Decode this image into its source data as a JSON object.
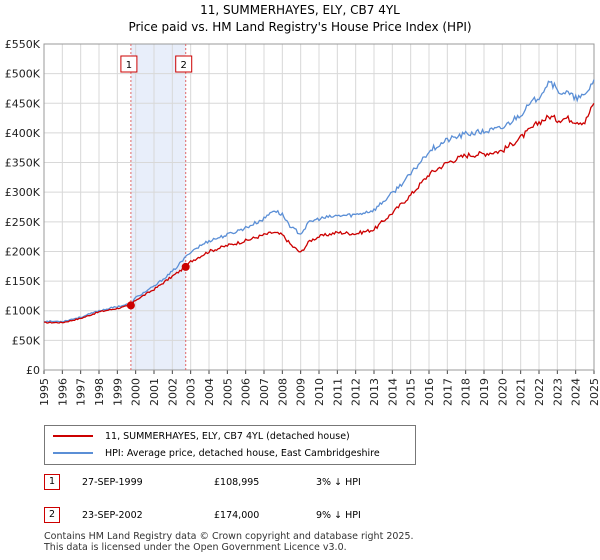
{
  "title_line1": "11, SUMMERHAYES, ELY, CB7 4YL",
  "title_line2": "Price paid vs. HM Land Registry's House Price Index (HPI)",
  "chart_data": {
    "type": "line",
    "xlim": [
      1995,
      2025
    ],
    "ylim": [
      0,
      550000
    ],
    "y_ticks": [
      0,
      50000,
      100000,
      150000,
      200000,
      250000,
      300000,
      350000,
      400000,
      450000,
      500000,
      550000
    ],
    "y_tick_labels": [
      "£0",
      "£50K",
      "£100K",
      "£150K",
      "£200K",
      "£250K",
      "£300K",
      "£350K",
      "£400K",
      "£450K",
      "£500K",
      "£550K"
    ],
    "x_ticks": [
      1995,
      1996,
      1997,
      1998,
      1999,
      2000,
      2001,
      2002,
      2003,
      2004,
      2005,
      2006,
      2007,
      2008,
      2009,
      2010,
      2011,
      2012,
      2013,
      2014,
      2015,
      2016,
      2017,
      2018,
      2019,
      2020,
      2021,
      2022,
      2023,
      2024,
      2025
    ],
    "x_tick_labels": [
      "1995",
      "1996",
      "1997",
      "1998",
      "1999",
      "2000",
      "2001",
      "2002",
      "2003",
      "2004",
      "2005",
      "2006",
      "2007",
      "2008",
      "2009",
      "2010",
      "2011",
      "2012",
      "2013",
      "2014",
      "2015",
      "2016",
      "2017",
      "2018",
      "2019",
      "2020",
      "2021",
      "2022",
      "2023",
      "2024",
      "2025"
    ],
    "shaded_region": [
      1999.74,
      2002.73
    ],
    "series": [
      {
        "name": "11, SUMMERHAYES, ELY, CB7 4YL (detached house)",
        "color": "#cc0000",
        "x": [
          1995,
          1996,
          1997,
          1998,
          1999,
          1999.74,
          2000,
          2001,
          2002,
          2002.73,
          2003,
          2004,
          2005,
          2006,
          2007,
          2007.5,
          2008,
          2008.5,
          2009,
          2009.5,
          2010,
          2011,
          2012,
          2013,
          2014,
          2015,
          2016,
          2017,
          2018,
          2019,
          2020,
          2021,
          2022,
          2022.6,
          2023,
          2023.5,
          2024,
          2024.5,
          2025
        ],
        "values": [
          80000,
          80000,
          87000,
          98000,
          104000,
          108995,
          118000,
          136000,
          158000,
          174000,
          183000,
          200000,
          210000,
          218000,
          228000,
          232000,
          228000,
          210000,
          198000,
          218000,
          225000,
          232000,
          230000,
          237000,
          265000,
          295000,
          330000,
          350000,
          362000,
          365000,
          370000,
          392000,
          418000,
          428000,
          422000,
          425000,
          420000,
          418000,
          450000
        ]
      },
      {
        "name": "HPI: Average price, detached house, East Cambridgeshire",
        "color": "#5b8fd6",
        "x": [
          1995,
          1996,
          1997,
          1998,
          1999,
          1999.74,
          2000,
          2001,
          2002,
          2002.73,
          2003,
          2004,
          2005,
          2006,
          2007,
          2007.5,
          2008,
          2008.5,
          2009,
          2009.5,
          2010,
          2011,
          2012,
          2013,
          2014,
          2015,
          2016,
          2017,
          2018,
          2019,
          2020,
          2021,
          2022,
          2022.6,
          2023,
          2023.5,
          2024,
          2024.5,
          2025
        ],
        "values": [
          82000,
          82000,
          89000,
          100000,
          107000,
          112000,
          122000,
          141000,
          166000,
          190000,
          200000,
          218000,
          228000,
          240000,
          255000,
          270000,
          262000,
          240000,
          230000,
          250000,
          255000,
          260000,
          262000,
          270000,
          298000,
          330000,
          370000,
          388000,
          398000,
          402000,
          408000,
          432000,
          462000,
          490000,
          470000,
          468000,
          458000,
          462000,
          490000
        ]
      }
    ],
    "annotations": [
      {
        "label": "1",
        "x": 1999.74
      },
      {
        "label": "2",
        "x": 2002.73
      }
    ]
  },
  "legend": {
    "item1": "11, SUMMERHAYES, ELY, CB7 4YL (detached house)",
    "item2": "HPI: Average price, detached house, East Cambridgeshire"
  },
  "sales": [
    {
      "num": "1",
      "date": "27-SEP-1999",
      "price": "£108,995",
      "hpi": "3% ↓ HPI"
    },
    {
      "num": "2",
      "date": "23-SEP-2002",
      "price": "£174,000",
      "hpi": "9% ↓ HPI"
    }
  ],
  "footer": {
    "line1": "Contains HM Land Registry data © Crown copyright and database right 2025.",
    "line2": "This data is licensed under the Open Government Licence v3.0."
  }
}
